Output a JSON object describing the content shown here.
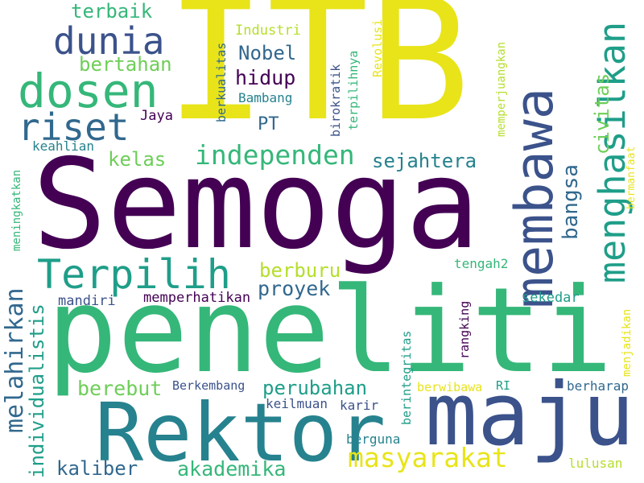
{
  "cloud": {
    "background": "#ffffff",
    "palette": {
      "dark_purple": "#440154",
      "indigo": "#3b528b",
      "blue": "#31688e",
      "teal": "#26828e",
      "teal_green": "#1f9e89",
      "green": "#35b779",
      "light_green": "#6ece58",
      "lime": "#b5de2b",
      "yellow": "#e8e419"
    },
    "words": [
      {
        "text": "ITB"
      },
      {
        "text": "Semoga"
      },
      {
        "text": "peneliti"
      },
      {
        "text": "Rektor"
      },
      {
        "text": "maju"
      },
      {
        "text": "membawa"
      },
      {
        "text": "menghasilkan"
      },
      {
        "text": "dosen"
      },
      {
        "text": "riset"
      },
      {
        "text": "dunia"
      },
      {
        "text": "Terpilih"
      },
      {
        "text": "independen"
      },
      {
        "text": "masyarakat"
      },
      {
        "text": "melahirkan"
      },
      {
        "text": "perubahan"
      },
      {
        "text": "bangsa"
      },
      {
        "text": "civitas"
      },
      {
        "text": "akademika"
      },
      {
        "text": "berebut"
      },
      {
        "text": "proyek"
      },
      {
        "text": "berburu"
      },
      {
        "text": "kaliber"
      },
      {
        "text": "individualistis"
      },
      {
        "text": "sejahtera"
      },
      {
        "text": "kelas"
      },
      {
        "text": "hidup"
      },
      {
        "text": "Nobel"
      },
      {
        "text": "bertahan"
      },
      {
        "text": "terbaik"
      },
      {
        "text": "PT"
      },
      {
        "text": "Industri"
      },
      {
        "text": "Bambang"
      },
      {
        "text": "Jaya"
      },
      {
        "text": "berkualitas"
      },
      {
        "text": "birokratik"
      },
      {
        "text": "terpilihnya"
      },
      {
        "text": "Revolusi"
      },
      {
        "text": "memperjuangkan"
      },
      {
        "text": "bermanfaat"
      },
      {
        "text": "keahlian"
      },
      {
        "text": "meningkatkan"
      },
      {
        "text": "mandiri"
      },
      {
        "text": "memperhatikan"
      },
      {
        "text": "tengah2"
      },
      {
        "text": "sekedar"
      },
      {
        "text": "rangking"
      },
      {
        "text": "berintegritas"
      },
      {
        "text": "menjadikan"
      },
      {
        "text": "Berkembang"
      },
      {
        "text": "keilmuan"
      },
      {
        "text": "karir"
      },
      {
        "text": "berwibawa"
      },
      {
        "text": "RI"
      },
      {
        "text": "berharap"
      },
      {
        "text": "berguna"
      },
      {
        "text": "lulusan"
      }
    ]
  }
}
